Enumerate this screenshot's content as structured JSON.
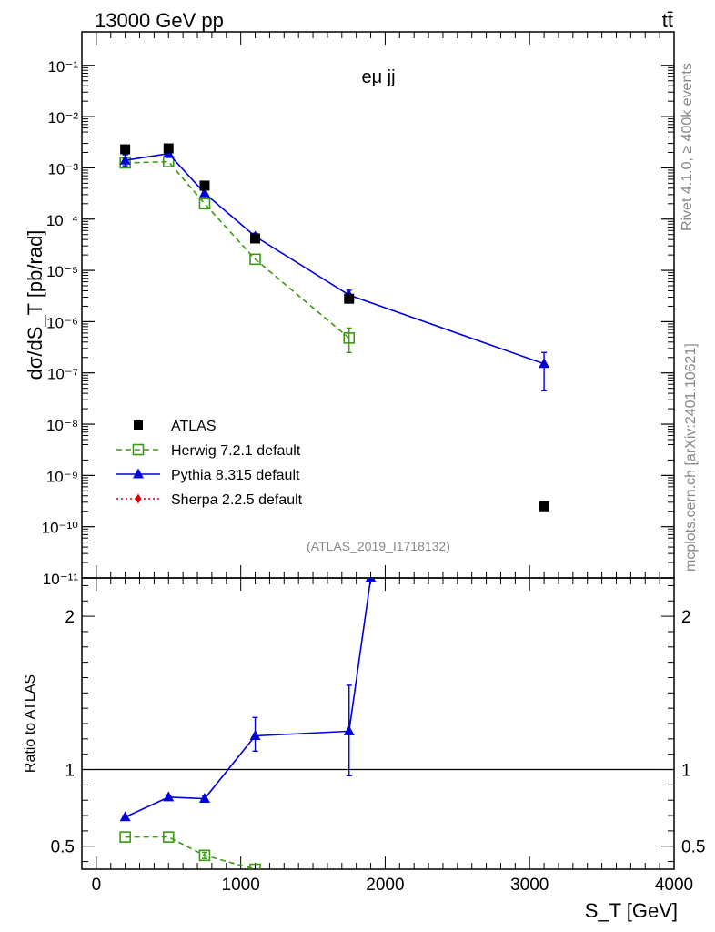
{
  "header": {
    "left_label": "13000 GeV pp",
    "right_label": "tt̄"
  },
  "side_labels": {
    "rivet": "Rivet 4.1.0, ≥ 400k events",
    "mcplots": "mcplots.cern.ch [arXiv:2401.10621]"
  },
  "chart_data": [
    {
      "panel": "main",
      "type": "scatter",
      "title": "eμ jj",
      "ylabel": "dσ/dS_T [pb/rad]",
      "yscale": "log",
      "ylim": [
        1e-11,
        0.45
      ],
      "xlim": [
        -100,
        4000
      ],
      "watermark": "(ATLAS_2019_I1718132)",
      "y_tick_labels": [
        "10⁻¹¹",
        "10⁻¹⁰",
        "10⁻⁹",
        "10⁻⁸",
        "10⁻⁷",
        "10⁻⁶",
        "10⁻⁵",
        "10⁻⁴",
        "10⁻³",
        "10⁻²",
        "10⁻¹"
      ],
      "legend": {
        "placement": "bottom-left",
        "entries": [
          "ATLAS",
          "Herwig 7.2.1 default",
          "Pythia 8.315 default",
          "Sherpa 2.2.5 default"
        ]
      },
      "series": [
        {
          "name": "ATLAS",
          "color": "#000000",
          "marker": "square",
          "x": [
            200,
            500,
            750,
            1100,
            1750,
            3100
          ],
          "y": [
            0.0023,
            0.0024,
            0.00045,
            4.2e-05,
            2.8e-06,
            2.5e-10
          ]
        },
        {
          "name": "Herwig 7.2.1 default",
          "color": "#3a9a12",
          "marker": "open-square",
          "line": "dashed",
          "x": [
            200,
            500,
            750,
            1100,
            1750
          ],
          "y": [
            0.00125,
            0.00132,
            0.0002,
            1.65e-05,
            4.8e-07
          ],
          "err_low": [
            0,
            0,
            0,
            0,
            2.5e-07
          ],
          "err_high": [
            0,
            0,
            0,
            0,
            7.5e-07
          ]
        },
        {
          "name": "Pythia 8.315 default",
          "color": "#0000dd",
          "marker": "triangle",
          "line": "solid",
          "x": [
            200,
            500,
            750,
            1100,
            1750,
            3100
          ],
          "y": [
            0.0014,
            0.0019,
            0.00032,
            4.6e-05,
            3.3e-06,
            1.5e-07
          ],
          "err_low": [
            0.0011,
            0.0016,
            0.00028,
            3.9e-05,
            2.6e-06,
            4.5e-08
          ],
          "err_high": [
            0.0018,
            0.0022,
            0.00037,
            5.3e-05,
            4.1e-06,
            2.5e-07
          ]
        },
        {
          "name": "Sherpa 2.2.5 default",
          "color": "#dd0000",
          "marker": "diamond",
          "line": "dotted",
          "x": [],
          "y": []
        }
      ]
    },
    {
      "panel": "ratio",
      "type": "line",
      "ylabel": "Ratio to ATLAS",
      "xlabel": "S_T [GeV]",
      "ylim": [
        0.35,
        2.25
      ],
      "xlim": [
        -100,
        4000
      ],
      "y_ticks": [
        0.5,
        1,
        2
      ],
      "y_tick_labels": [
        "0.5",
        "1",
        "2"
      ],
      "x_ticks": [
        0,
        1000,
        2000,
        3000,
        4000
      ],
      "x_tick_labels": [
        "0",
        "1000",
        "2000",
        "3000",
        "4000"
      ],
      "reference_line": 1,
      "series": [
        {
          "name": "Pythia 8.315 default",
          "color": "#0000dd",
          "marker": "triangle",
          "line": "solid",
          "x": [
            200,
            500,
            750,
            1100,
            1750,
            1900
          ],
          "y": [
            0.69,
            0.82,
            0.81,
            1.22,
            1.25,
            2.25
          ],
          "err_low": [
            0.68,
            0.81,
            0.79,
            1.12,
            0.96,
            2.25
          ],
          "err_high": [
            0.7,
            0.83,
            0.83,
            1.34,
            1.55,
            2.25
          ]
        },
        {
          "name": "Herwig 7.2.1 default",
          "color": "#3a9a12",
          "marker": "open-square",
          "line": "dashed",
          "x": [
            200,
            500,
            750,
            1100
          ],
          "y": [
            0.56,
            0.56,
            0.44,
            0.35
          ],
          "err_low": [
            0.56,
            0.56,
            0.42,
            0.35
          ],
          "err_high": [
            0.56,
            0.56,
            0.46,
            0.35
          ]
        }
      ]
    }
  ]
}
